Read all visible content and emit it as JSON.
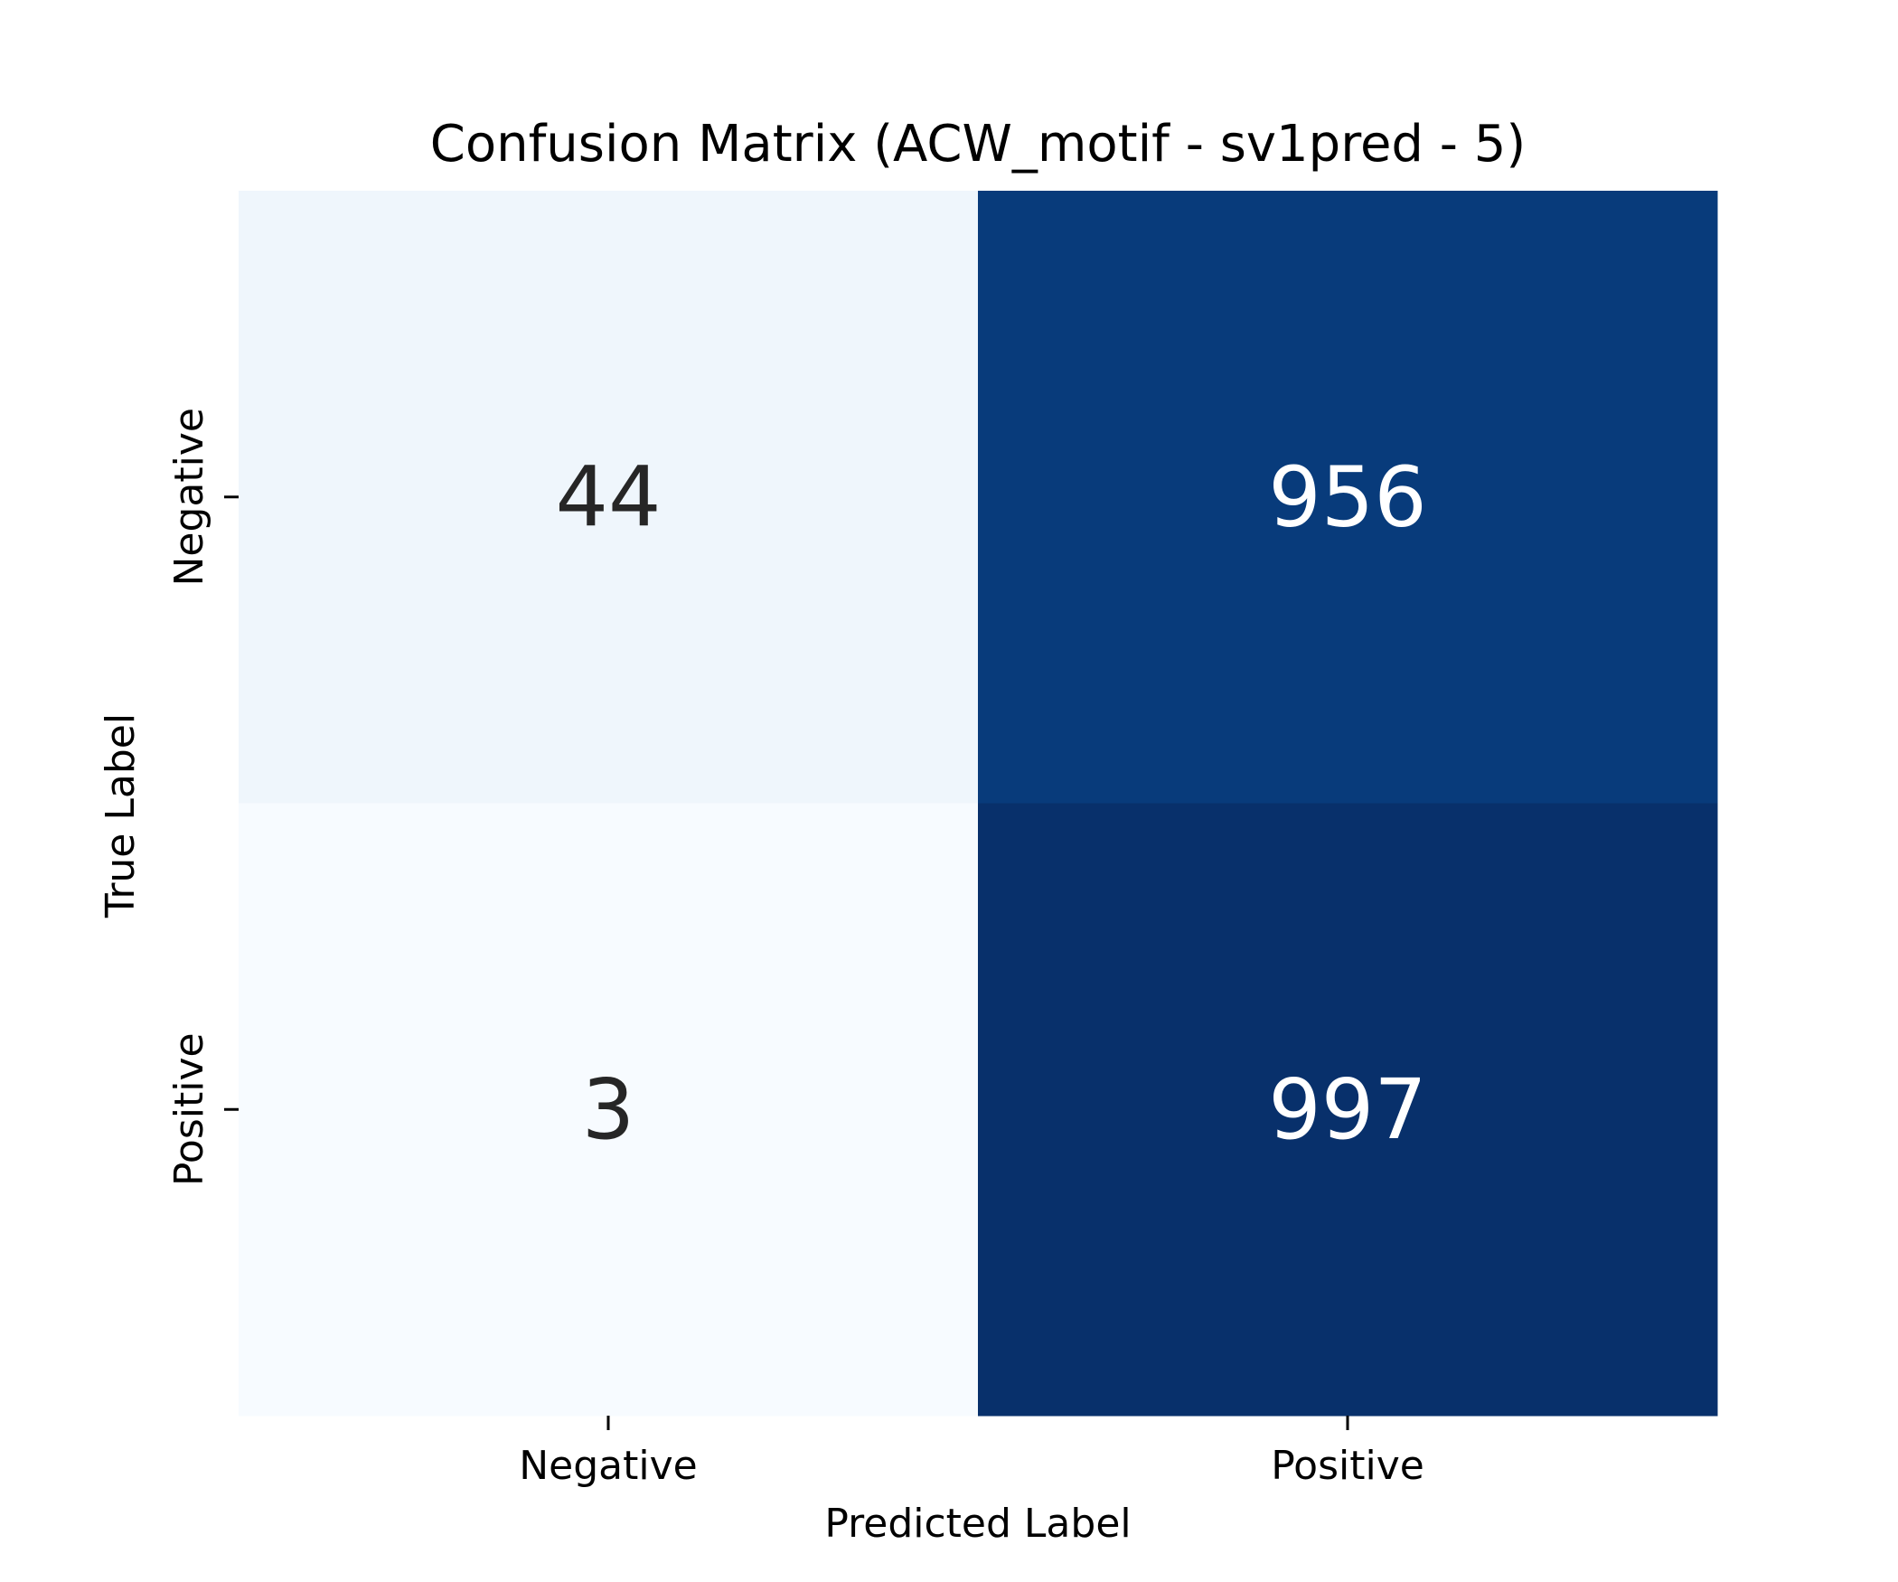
{
  "chart_data": {
    "type": "heatmap",
    "title": "Confusion Matrix (ACW_motif - sv1pred - 5)",
    "xlabel": "Predicted Label",
    "ylabel": "True Label",
    "x_categories": [
      "Negative",
      "Positive"
    ],
    "y_categories": [
      "Negative",
      "Positive"
    ],
    "values": [
      [
        44,
        956
      ],
      [
        3,
        997
      ]
    ],
    "colormap": "Blues",
    "colorbar": false,
    "colors": {
      "light_text": "#ffffff",
      "dark_text": "#262626"
    }
  }
}
